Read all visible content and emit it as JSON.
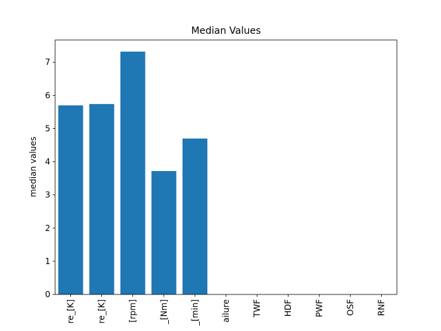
{
  "chart_data": {
    "type": "bar",
    "title": "Median Values",
    "xlabel": "",
    "ylabel": "median values",
    "categories": [
      "re_[K]",
      "re_[K]",
      "[rpm]",
      "_[Nm]",
      "_[min]",
      "ailure",
      "TWF",
      "HDF",
      "PWF",
      "OSF",
      "RNF"
    ],
    "values": [
      5.7,
      5.74,
      7.32,
      3.72,
      4.7,
      0,
      0,
      0,
      0,
      0,
      0
    ],
    "ylim": [
      0,
      7.67
    ],
    "yticks": [
      0,
      1,
      2,
      3,
      4,
      5,
      6,
      7
    ],
    "bar_color": "#1f77b4",
    "grid": false,
    "legend": "none"
  }
}
